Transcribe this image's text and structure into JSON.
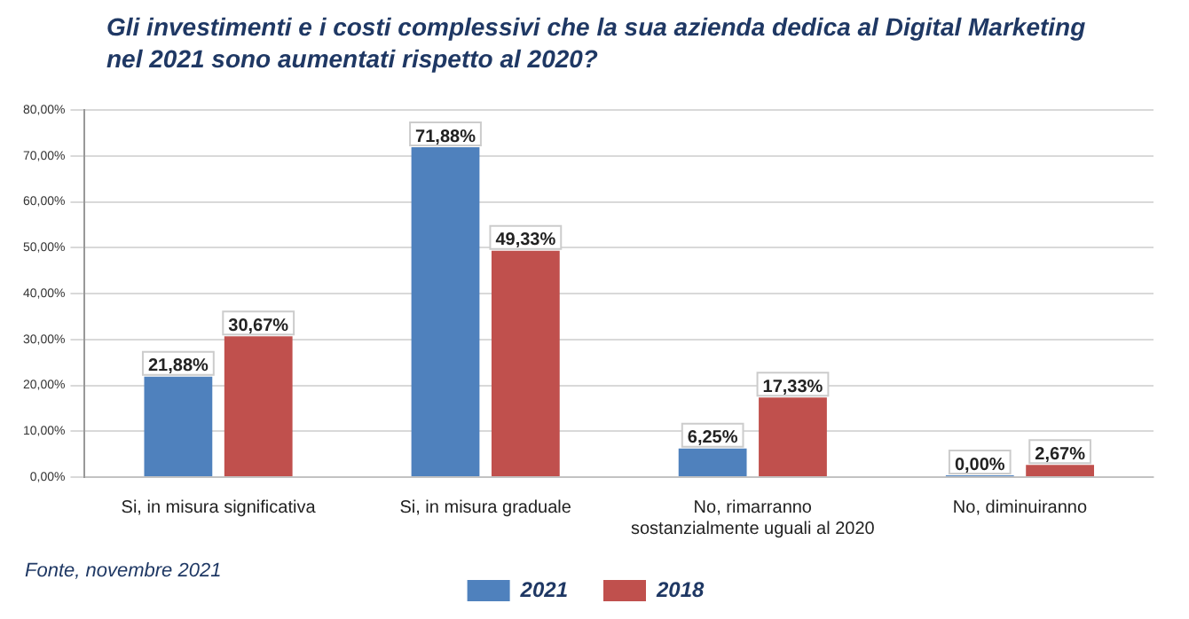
{
  "chart_data": {
    "type": "bar",
    "title": "Gli investimenti e i costi complessivi che la sua azienda dedica al Digital Marketing nel 2021 sono aumentati rispetto al 2020?",
    "categories": [
      "Si, in misura significativa",
      "Si, in misura graduale",
      "No, rimarranno sostanzialmente uguali al 2020",
      "No, diminuiranno"
    ],
    "series": [
      {
        "name": "2021",
        "color": "#4f81bd",
        "values": [
          21.88,
          71.88,
          6.25,
          0
        ],
        "value_labels": [
          "21,88%",
          "71,88%",
          "6,25%",
          "0,00%"
        ]
      },
      {
        "name": "2018",
        "color": "#c0504d",
        "values": [
          30.67,
          49.33,
          17.33,
          2.67
        ],
        "value_labels": [
          "30,67%",
          "49,33%",
          "17,33%",
          "2,67%"
        ]
      }
    ],
    "ylim": [
      0,
      80
    ],
    "yticks": [
      {
        "value": 0,
        "label": "0,00%"
      },
      {
        "value": 10,
        "label": "10,00%"
      },
      {
        "value": 20,
        "label": "20,00%"
      },
      {
        "value": 30,
        "label": "30,00%"
      },
      {
        "value": 40,
        "label": "40,00%"
      },
      {
        "value": 50,
        "label": "50,00%"
      },
      {
        "value": 60,
        "label": "60,00%"
      },
      {
        "value": 70,
        "label": "70,00%"
      },
      {
        "value": 80,
        "label": "80,00%"
      }
    ],
    "grid": "y",
    "legend": "bottom",
    "annotations": [
      "Fonte, novembre 2021"
    ]
  }
}
